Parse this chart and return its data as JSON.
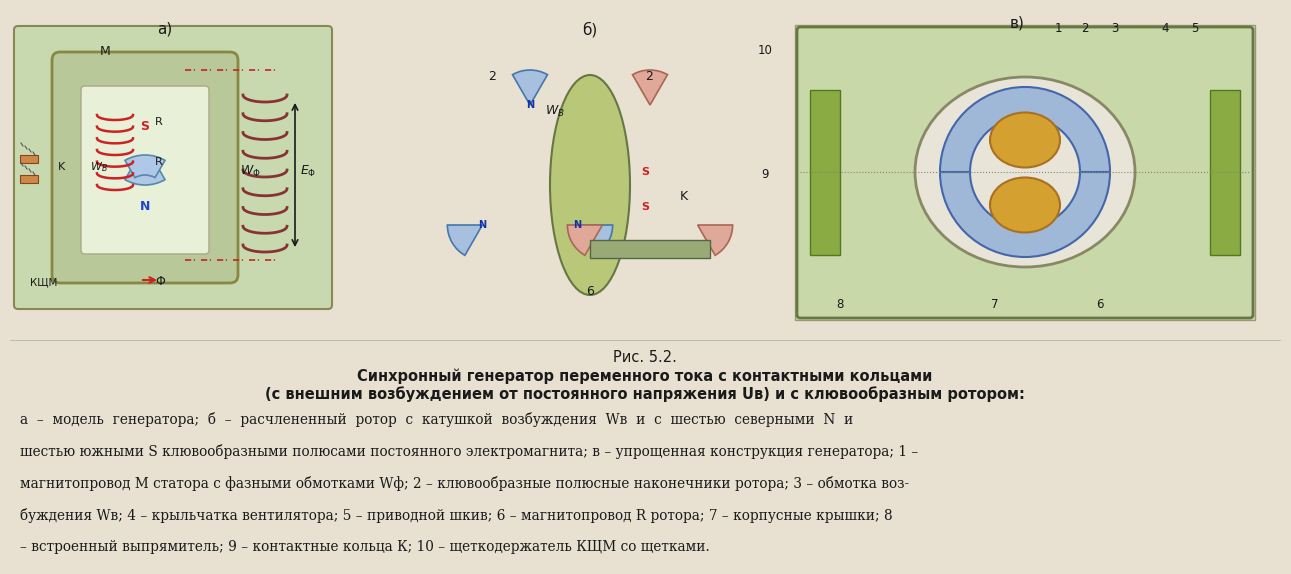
{
  "background_color": "#e8e0d0",
  "fig_title": "Рис. 5.2.",
  "subtitle_line1": "Синхронный генератор переменного тока с контактными кольцами",
  "subtitle_line2": "(с внешним возбуждением от постоянного напряжения Uв) и с клювообразным ротором:",
  "body_lines": [
    "а  –  модель  генератора;  б  –  расчлененный  ротор  с  катушкой  возбуждения  Wв  и  с  шестью  северными  N  и",
    "шестью южными S клювообразными полюсами постоянного электромагнита; в – упрощенная конструкция генератора; 1 –",
    "магнитопровод М статора с фазными обмотками Wф; 2 – клювообразные полюсные наконечники ротора; 3 – обмотка воз-",
    "буждения Wв; 4 – крыльчатка вентилятора; 5 – приводной шкив; 6 – магнитопровод R ротора; 7 – корпусные крышки; 8",
    "– встроенный выпрямитель; 9 – контактные кольца К; 10 – щеткодержатель КЩМ со щетками."
  ],
  "label_a": "а)",
  "label_b": "б)",
  "label_v": "в)",
  "fig_width": 12.91,
  "fig_height": 5.74,
  "title_fontsize": 10.5,
  "subtitle_bold_fontsize": 10.5,
  "body_fontsize": 9.8,
  "text_color": "#1a1a1a",
  "diagram_bg": "#d4c9a8",
  "image_area_color": "#c8bfa0"
}
